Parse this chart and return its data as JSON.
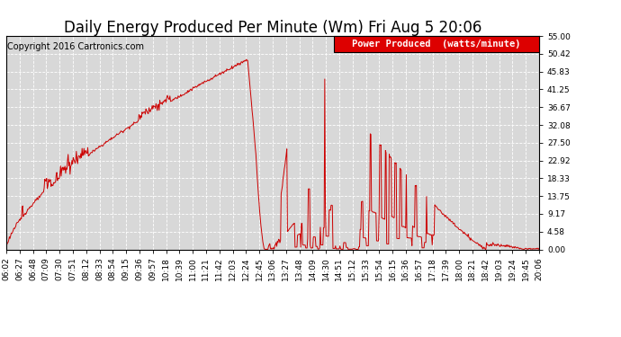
{
  "title": "Daily Energy Produced Per Minute (Wm) Fri Aug 5 20:06",
  "copyright": "Copyright 2016 Cartronics.com",
  "legend_label": "Power Produced  (watts/minute)",
  "legend_bg": "#dd0000",
  "legend_text_color": "#ffffff",
  "line_color": "#cc0000",
  "bg_color": "#ffffff",
  "plot_bg_color": "#d8d8d8",
  "grid_color": "#ffffff",
  "ylim": [
    0,
    55.0
  ],
  "yticks": [
    0.0,
    4.58,
    9.17,
    13.75,
    18.33,
    22.92,
    27.5,
    32.08,
    36.67,
    41.25,
    45.83,
    50.42,
    55.0
  ],
  "xtick_labels": [
    "06:02",
    "06:27",
    "06:48",
    "07:09",
    "07:30",
    "07:51",
    "08:12",
    "08:33",
    "08:54",
    "09:15",
    "09:36",
    "09:57",
    "10:18",
    "10:39",
    "11:00",
    "11:21",
    "11:42",
    "12:03",
    "12:24",
    "12:45",
    "13:06",
    "13:27",
    "13:48",
    "14:09",
    "14:30",
    "14:51",
    "15:12",
    "15:33",
    "15:54",
    "16:15",
    "16:36",
    "16:57",
    "17:18",
    "17:39",
    "18:00",
    "18:21",
    "18:42",
    "19:03",
    "19:24",
    "19:45",
    "20:06"
  ],
  "title_fontsize": 12,
  "copyright_fontsize": 7,
  "tick_fontsize": 6.5,
  "legend_fontsize": 7.5
}
